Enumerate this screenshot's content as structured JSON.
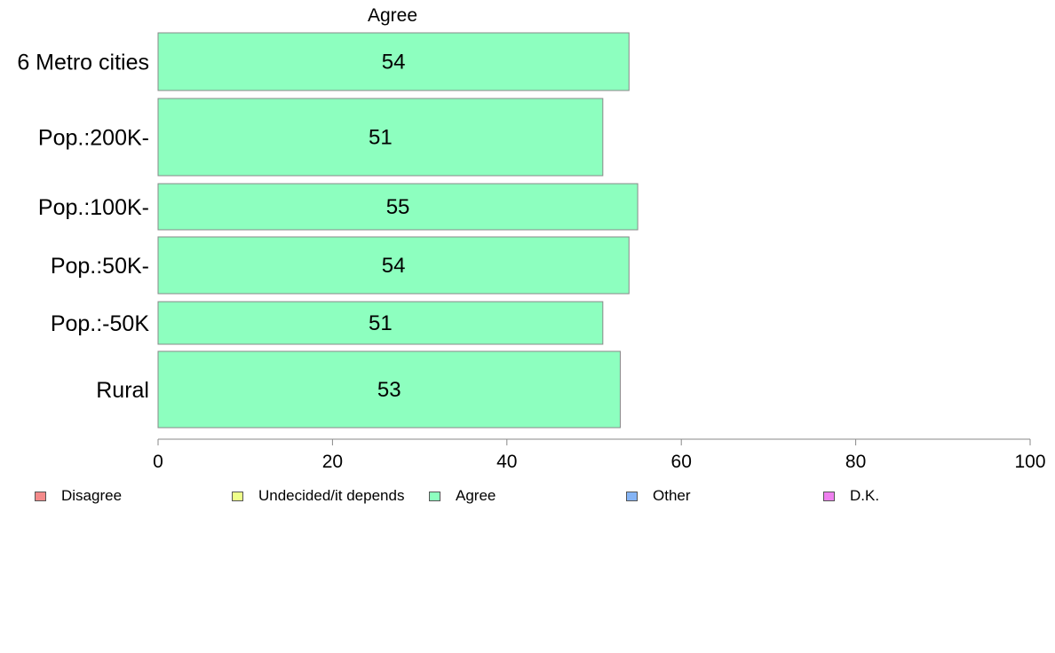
{
  "chart_data": {
    "type": "bar",
    "orientation": "horizontal",
    "title": "Agree",
    "categories": [
      "6 Metro cities",
      "Pop.:200K-",
      "Pop.:100K-",
      "Pop.:50K-",
      "Pop.:-50K",
      "Rural"
    ],
    "series": [
      {
        "name": "Agree",
        "values": [
          54,
          51,
          55,
          54,
          51,
          53
        ],
        "color": "#8dffbf"
      }
    ],
    "data_labels": [
      "54",
      "51",
      "55",
      "54",
      "51",
      "53"
    ],
    "xlim": [
      0,
      100
    ],
    "xticks": [
      0,
      20,
      40,
      60,
      80,
      100
    ],
    "xtick_labels": [
      "0",
      "20",
      "40",
      "60",
      "80",
      "100"
    ],
    "xlabel": "",
    "ylabel": "",
    "grid": false,
    "legend_position": "bottom"
  },
  "legend": {
    "items": [
      {
        "label": "Disagree",
        "color": "#f48a8a"
      },
      {
        "label": "Undecided/it depends",
        "color": "#eeff8a"
      },
      {
        "label": "Agree",
        "color": "#8dffbf"
      },
      {
        "label": "Other",
        "color": "#85b4f5"
      },
      {
        "label": "D.K.",
        "color": "#ee80ee"
      }
    ]
  }
}
